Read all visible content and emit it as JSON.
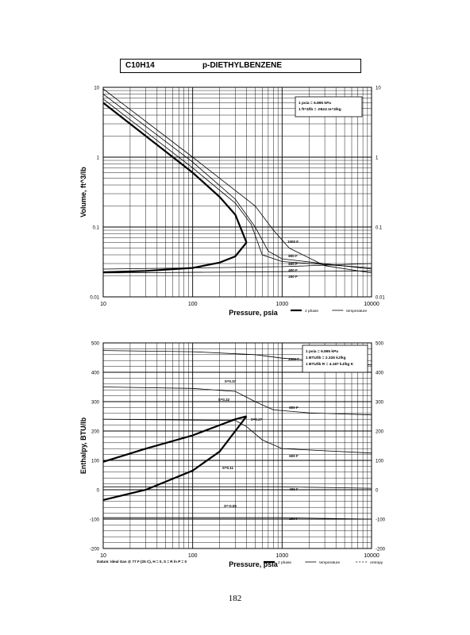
{
  "header": {
    "formula": "C10H14",
    "compound": "p-DIETHYLBENZENE"
  },
  "page_number": "182",
  "chart_data": [
    {
      "type": "line",
      "scale": "log-log",
      "xlabel": "Pressure,  psia",
      "ylabel": "Volume, ft^3/lb",
      "xlim": [
        10,
        10000
      ],
      "ylim": [
        0.01,
        10
      ],
      "x_ticks": [
        "10",
        "100",
        "1000",
        "10000"
      ],
      "y_ticks": [
        "10",
        "1",
        "0.1",
        "0.01"
      ],
      "grid": true,
      "legend": {
        "position": "bottom-right",
        "entries": [
          "2 phase",
          "temperature"
        ]
      },
      "conversion_box": [
        "1 psia = 6.895 kPa",
        "1 ft^3/lb = .0624 m^3/kg"
      ],
      "isotherm_labels": [
        "1000 F",
        "800 F",
        "600 F",
        "400 F",
        "200 F"
      ],
      "dome": {
        "saturated_liquid": [
          [
            10,
            0.0225
          ],
          [
            30,
            0.0235
          ],
          [
            100,
            0.026
          ],
          [
            200,
            0.031
          ],
          [
            300,
            0.038
          ],
          [
            400,
            0.06
          ]
        ],
        "saturated_vapor": [
          [
            10,
            6.0
          ],
          [
            20,
            3.0
          ],
          [
            50,
            1.2
          ],
          [
            100,
            0.6
          ],
          [
            200,
            0.27
          ],
          [
            300,
            0.15
          ],
          [
            400,
            0.06
          ]
        ]
      },
      "series": [
        {
          "label": "1000 F",
          "points": [
            [
              10,
              9.5
            ],
            [
              100,
              1.0
            ],
            [
              500,
              0.2
            ],
            [
              800,
              0.09
            ],
            [
              1200,
              0.05
            ],
            [
              3000,
              0.028
            ],
            [
              10000,
              0.022
            ]
          ]
        },
        {
          "label": "800 F",
          "points": [
            [
              10,
              8.0
            ],
            [
              100,
              0.85
            ],
            [
              300,
              0.25
            ],
            [
              500,
              0.1
            ],
            [
              700,
              0.045
            ],
            [
              1000,
              0.035
            ],
            [
              10000,
              0.025
            ]
          ]
        },
        {
          "label": "600 F",
          "points": [
            [
              10,
              6.8
            ],
            [
              100,
              0.7
            ],
            [
              300,
              0.22
            ],
            [
              450,
              0.11
            ],
            [
              600,
              0.04
            ],
            [
              1000,
              0.032
            ],
            [
              10000,
              0.026
            ]
          ]
        },
        {
          "label": "400 F",
          "points": [
            [
              10,
              0.025
            ],
            [
              1000,
              0.027
            ],
            [
              10000,
              0.03
            ]
          ]
        },
        {
          "label": "200 F",
          "points": [
            [
              10,
              0.022
            ],
            [
              1000,
              0.023
            ],
            [
              10000,
              0.0235
            ]
          ]
        }
      ]
    },
    {
      "type": "line",
      "scale": "log-x",
      "xlabel": "Pressure,  psia",
      "ylabel": "Enthalpy, BTU/lb",
      "xlim": [
        10,
        10000
      ],
      "ylim": [
        -200,
        500
      ],
      "x_ticks": [
        "10",
        "100",
        "1000",
        "10000"
      ],
      "y_ticks": [
        "500",
        "400",
        "300",
        "200",
        "100",
        "0",
        "-100",
        "-200"
      ],
      "grid": true,
      "legend": {
        "position": "bottom-right",
        "entries": [
          "2 phase",
          "temperature",
          "entropy"
        ]
      },
      "conversion_box": [
        "1 psia = 6.895 kPa",
        "1 BTU/lb = 2.326 kJ/kg",
        "1 BTU/lb R = 4.187 kJ/kg K"
      ],
      "datum": "Datum: Ideal Gas @ 77 F (25 C), H = 0, S = R ln P = 0",
      "isotherm_labels": [
        "1000 F",
        "800 F",
        "600 F",
        "400 F",
        "200 F"
      ],
      "entropy_labels": [
        "S=0.37",
        "S=0.32",
        "S=0.27",
        "S=0.11",
        "S=-0.05"
      ],
      "dome": {
        "vapor_branch": [
          [
            10,
            95
          ],
          [
            30,
            140
          ],
          [
            100,
            185
          ],
          [
            200,
            220
          ],
          [
            300,
            240
          ],
          [
            400,
            250
          ]
        ],
        "liquid_branch": [
          [
            10,
            -35
          ],
          [
            30,
            0
          ],
          [
            100,
            65
          ],
          [
            200,
            130
          ],
          [
            300,
            200
          ],
          [
            400,
            250
          ]
        ]
      },
      "series": [
        {
          "label": "1000 F",
          "points": [
            [
              10,
              474
            ],
            [
              100,
              470
            ],
            [
              500,
              460
            ],
            [
              1000,
              448
            ],
            [
              10000,
              425
            ]
          ]
        },
        {
          "label": "800 F",
          "points": [
            [
              10,
              350
            ],
            [
              100,
              345
            ],
            [
              300,
              335
            ],
            [
              500,
              300
            ],
            [
              800,
              272
            ],
            [
              2000,
              262
            ],
            [
              10000,
              255
            ]
          ]
        },
        {
          "label": "600 F",
          "points": [
            [
              10,
              240
            ],
            [
              300,
              236
            ],
            [
              400,
              215
            ],
            [
              600,
              170
            ],
            [
              1000,
              140
            ],
            [
              10000,
              125
            ]
          ]
        },
        {
          "label": "400 F",
          "points": [
            [
              10,
              10
            ],
            [
              1000,
              10
            ],
            [
              10000,
              5
            ]
          ]
        },
        {
          "label": "200 F",
          "points": [
            [
              10,
              -95
            ],
            [
              1000,
              -95
            ],
            [
              10000,
              -100
            ]
          ]
        }
      ]
    }
  ]
}
